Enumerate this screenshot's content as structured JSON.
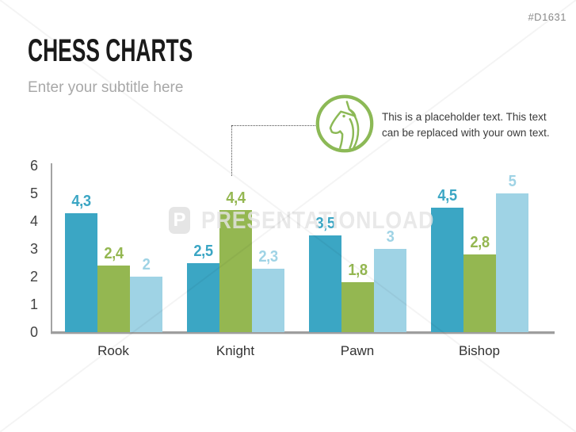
{
  "slide": {
    "id_tag": "#D1631",
    "title": "CHESS CHARTS",
    "subtitle": "Enter your subtitle here"
  },
  "callout": {
    "icon": "knight-chess-icon",
    "icon_color": "#8cb956",
    "line1": "This is a placeholder text. This text",
    "line2": "can be replaced with your own text."
  },
  "watermark": {
    "logo_letter": "P",
    "text": "PRESENTATIONLOAD"
  },
  "chart_data": {
    "type": "bar",
    "title": "",
    "xlabel": "",
    "ylabel": "",
    "categories": [
      "Rook",
      "Knight",
      "Pawn",
      "Bishop"
    ],
    "series": [
      {
        "name": "series-teal",
        "color": "#3ba6c4",
        "values": [
          4.3,
          2.5,
          3.5,
          4.5
        ],
        "labels": [
          "4,3",
          "2,5",
          "3,5",
          "4,5"
        ]
      },
      {
        "name": "series-green",
        "color": "#94b751",
        "values": [
          2.4,
          4.4,
          1.8,
          2.8
        ],
        "labels": [
          "2,4",
          "4,4",
          "1,8",
          "2,8"
        ]
      },
      {
        "name": "series-lightblue",
        "color": "#9fd3e5",
        "values": [
          2.0,
          2.3,
          3.0,
          5.0
        ],
        "labels": [
          "2",
          "2,3",
          "3",
          "5"
        ]
      }
    ],
    "ylim": [
      0,
      6
    ],
    "yticks": [
      0,
      1,
      2,
      3,
      4,
      5,
      6
    ],
    "decimal_separator": ",",
    "grid": false,
    "legend": false,
    "axis_color": "#9e9e9e"
  }
}
